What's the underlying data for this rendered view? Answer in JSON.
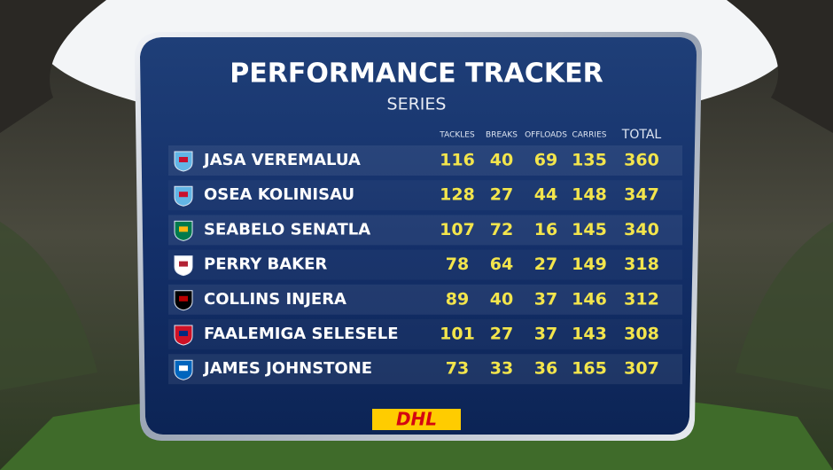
{
  "header": {
    "title": "PERFORMANCE TRACKER",
    "subtitle": "SERIES"
  },
  "table": {
    "columns": [
      "TACKLES",
      "BREAKS",
      "OFFLOADS",
      "CARRIES",
      "TOTAL"
    ],
    "rows": [
      {
        "name": "JASA VEREMALUA",
        "values": [
          116,
          40,
          69,
          135,
          360
        ]
      },
      {
        "name": "OSEA KOLINISAU",
        "values": [
          128,
          27,
          44,
          148,
          347
        ]
      },
      {
        "name": "SEABELO SENATLA",
        "values": [
          107,
          72,
          16,
          145,
          340
        ]
      },
      {
        "name": "PERRY BAKER",
        "values": [
          78,
          64,
          27,
          149,
          318
        ]
      },
      {
        "name": "COLLINS INJERA",
        "values": [
          89,
          40,
          37,
          146,
          312
        ]
      },
      {
        "name": "FAALEMIGA SELESELE",
        "values": [
          101,
          27,
          37,
          143,
          308
        ]
      },
      {
        "name": "JAMES JOHNSTONE",
        "values": [
          73,
          33,
          36,
          165,
          307
        ]
      }
    ]
  },
  "footer": {
    "logo": "DHL"
  }
}
